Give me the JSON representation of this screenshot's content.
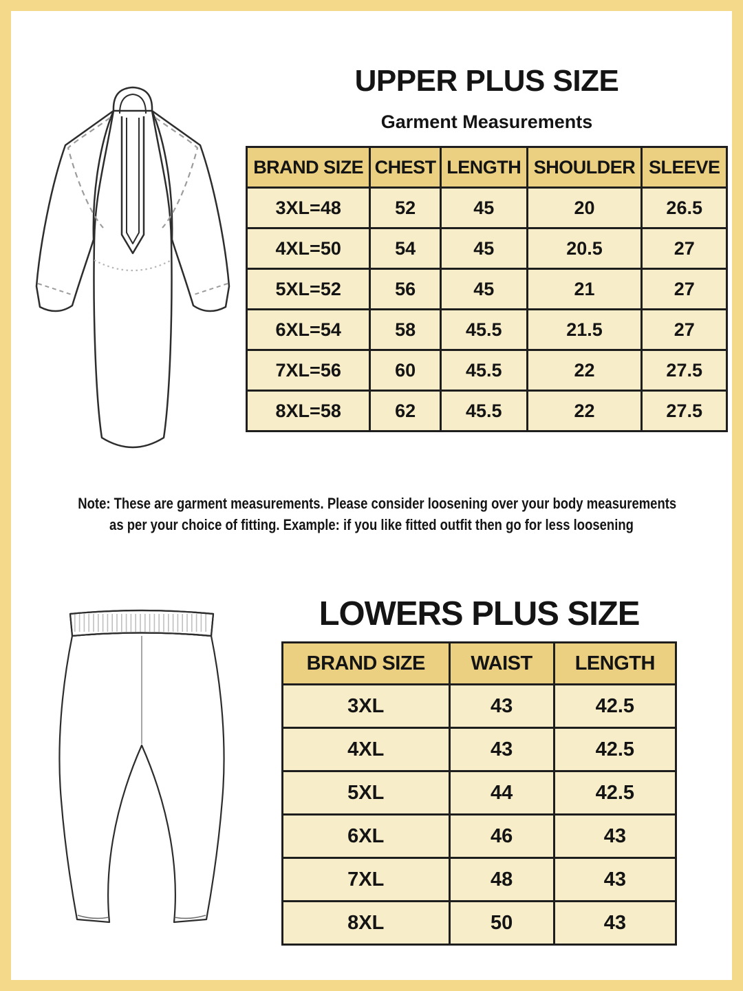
{
  "colors": {
    "frame_gold": "#f5d98b",
    "table_header_gold": "#ebd082",
    "table_cell_cream": "#f7edc8",
    "table_border": "#1e1e1e",
    "text_black": "#141414",
    "page_background": "#ffffff"
  },
  "upper": {
    "title": "UPPER PLUS SIZE",
    "subtitle": "Garment Measurements",
    "illustration": "kurta-top-line-drawing",
    "table": {
      "headers": [
        "BRAND SIZE",
        "CHEST",
        "LENGTH",
        "SHOULDER",
        "SLEEVE"
      ],
      "rows": [
        [
          "3XL=48",
          "52",
          "45",
          "20",
          "26.5"
        ],
        [
          "4XL=50",
          "54",
          "45",
          "20.5",
          "27"
        ],
        [
          "5XL=52",
          "56",
          "45",
          "21",
          "27"
        ],
        [
          "6XL=54",
          "58",
          "45.5",
          "21.5",
          "27"
        ],
        [
          "7XL=56",
          "60",
          "45.5",
          "22",
          "27.5"
        ],
        [
          "8XL=58",
          "62",
          "45.5",
          "22",
          "27.5"
        ]
      ]
    }
  },
  "note": {
    "line1": "Note: These are garment measurements. Please consider loosening over your body measurements",
    "line2": "as per your choice of fitting. Example: if you like fitted outfit then go for less loosening"
  },
  "lower": {
    "title": "LOWERS PLUS SIZE",
    "illustration": "pants-line-drawing",
    "table": {
      "headers": [
        "BRAND SIZE",
        "WAIST",
        "LENGTH"
      ],
      "rows": [
        [
          "3XL",
          "43",
          "42.5"
        ],
        [
          "4XL",
          "43",
          "42.5"
        ],
        [
          "5XL",
          "44",
          "42.5"
        ],
        [
          "6XL",
          "46",
          "43"
        ],
        [
          "7XL",
          "48",
          "43"
        ],
        [
          "8XL",
          "50",
          "43"
        ]
      ]
    }
  }
}
